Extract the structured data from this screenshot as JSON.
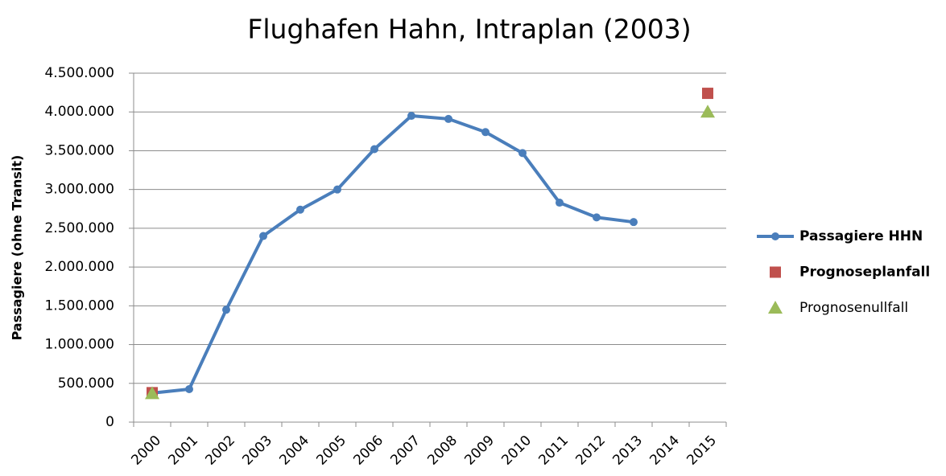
{
  "chart_data": {
    "type": "line",
    "title": "Flughafen Hahn, Intraplan (2003)",
    "y_label": "Passagiere (ohne Transit)",
    "categories": [
      "2000",
      "2001",
      "2002",
      "2003",
      "2004",
      "2005",
      "2006",
      "2007",
      "2008",
      "2009",
      "2010",
      "2011",
      "2012",
      "2013",
      "2014",
      "2015"
    ],
    "series": [
      {
        "name": "Passagiere HHN",
        "color": "#4a7ebb",
        "marker": "line",
        "values": [
          375000,
          425000,
          1450000,
          2400000,
          2740000,
          3000000,
          3520000,
          3950000,
          3910000,
          3740000,
          3470000,
          2830000,
          2640000,
          2580000,
          null,
          null
        ]
      },
      {
        "name": "Prognoseplanfall",
        "color": "#c0504d",
        "marker": "square",
        "values": [
          380000,
          null,
          null,
          null,
          null,
          null,
          null,
          null,
          null,
          null,
          null,
          null,
          null,
          null,
          null,
          4240000
        ]
      },
      {
        "name": "Prognosenullfall",
        "color": "#9bbb59",
        "marker": "triangle",
        "values": [
          370000,
          null,
          null,
          null,
          null,
          null,
          null,
          null,
          null,
          null,
          null,
          null,
          null,
          null,
          null,
          4000000
        ]
      }
    ],
    "ylim": [
      0,
      4500000
    ],
    "yticks": [
      0,
      {
        "value": 500000,
        "label": "500.000"
      },
      {
        "value": 1000000,
        "label": "1.000.000"
      },
      {
        "value": 1500000,
        "label": "1.500.000"
      },
      {
        "value": 2000000,
        "label": "2.000.000"
      },
      {
        "value": 2500000,
        "label": "2.500.000"
      },
      {
        "value": 3000000,
        "label": "3.000.000"
      },
      {
        "value": 3500000,
        "label": "3.500.000"
      },
      {
        "value": 4000000,
        "label": "4.000.000"
      },
      {
        "value": 4500000,
        "label": "4.500.000"
      }
    ],
    "grid": true,
    "legend": "right"
  }
}
